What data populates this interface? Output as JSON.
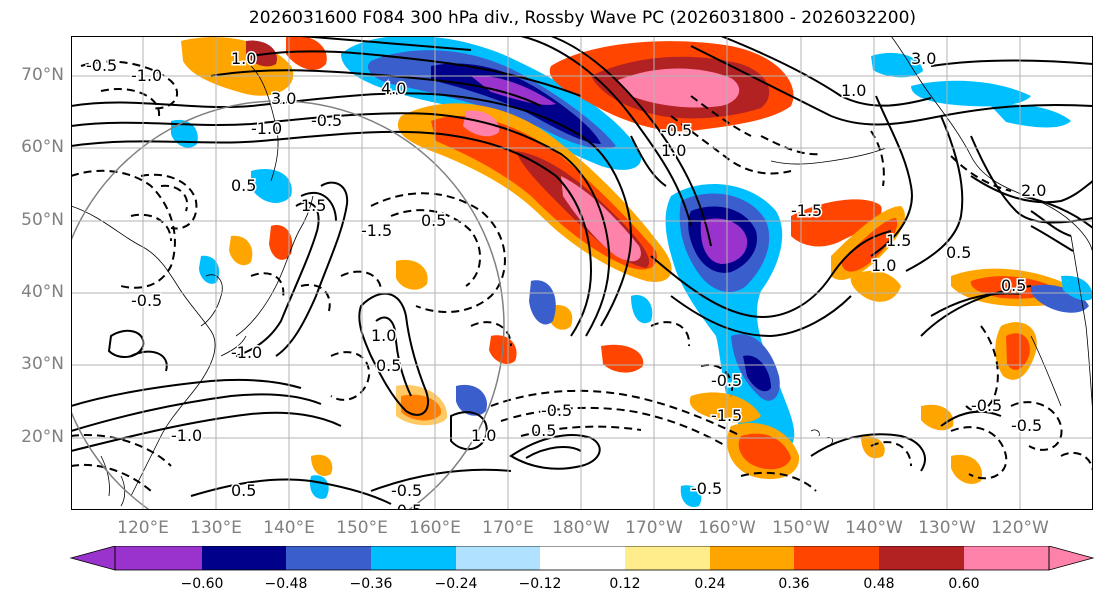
{
  "title": "2026031600 F084 300 hPa div., Rossby Wave PC (2026031800 - 2026032200)",
  "latitude_labels": [
    "70°N",
    "60°N",
    "50°N",
    "40°N",
    "30°N",
    "20°N"
  ],
  "longitude_labels": [
    "120°E",
    "130°E",
    "140°E",
    "150°E",
    "160°E",
    "170°E",
    "180°W",
    "170°W",
    "160°W",
    "150°W",
    "140°W",
    "130°W",
    "120°W"
  ],
  "colorbar": {
    "colors": [
      "#9a32cd",
      "#00008b",
      "#3a5fcd",
      "#00bfff",
      "#b0e2ff",
      "#ffffff",
      "#ffec8b",
      "#ffa500",
      "#ff4500",
      "#b22222",
      "#ff82ab"
    ],
    "tick_labels": [
      "−0.60",
      "−0.48",
      "−0.36",
      "−0.24",
      "−0.12",
      "0.12",
      "0.24",
      "0.36",
      "0.48",
      "0.60"
    ]
  },
  "contour_labels": [
    "-0.5",
    "-1.0",
    "1.0",
    "3.0",
    "4.0",
    "-0.5",
    "-1.0",
    "0.5",
    "-1.5",
    "1.5",
    "1.0",
    "0.5",
    "-1.0",
    "1.0",
    "0.5",
    "-0.5",
    "-0.5",
    "0.5",
    "-0.5",
    "-0.5",
    "-0.5",
    "0.5",
    "-0.5",
    "-1.0",
    "1.0",
    "-1.5",
    "-0.5",
    "-1.5",
    "1.0",
    "-0.5",
    "3.0",
    "1.0",
    "1.5",
    "-0.5",
    "2.0",
    "0.5",
    "0.5"
  ]
}
